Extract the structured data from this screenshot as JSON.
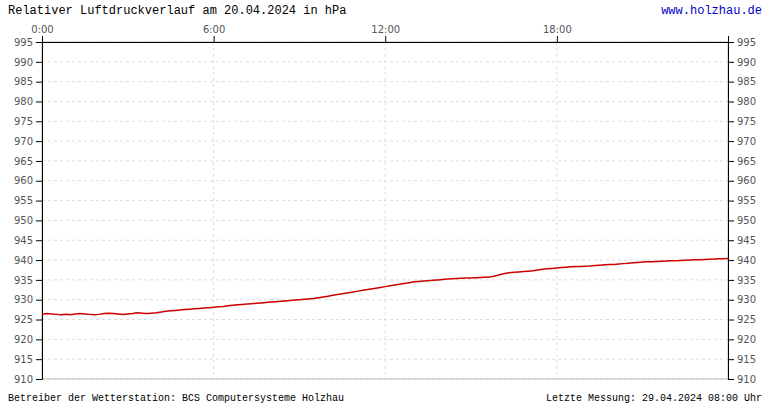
{
  "chart_data": {
    "type": "line",
    "title": "Relativer Luftdruckverlauf am 20.04.2024 in hPa",
    "annotations": [
      "www.holzhau.de",
      "Betreiber der Wetterstation: BCS Computersysteme Holzhau",
      "Letzte Messung: 29.04.2024 08:00 Uhr"
    ],
    "x": [
      0,
      10,
      20,
      30,
      40,
      50,
      60,
      70,
      80,
      90,
      100,
      110,
      120,
      130,
      140,
      150,
      160,
      170,
      180,
      190,
      200,
      210,
      220,
      230,
      240,
      250,
      260,
      270,
      280,
      290,
      300,
      310,
      320,
      330,
      340,
      350,
      360,
      370,
      380,
      390,
      400,
      410,
      420,
      430,
      440,
      450,
      460,
      470,
      480,
      490,
      500,
      510,
      520,
      530,
      540,
      550,
      560,
      570,
      580,
      590,
      600,
      610,
      620,
      630,
      640,
      650,
      660,
      670,
      680,
      690,
      700,
      710,
      720,
      730,
      740,
      750,
      760,
      770,
      780,
      790,
      800,
      810,
      820,
      830,
      840,
      850,
      860,
      870,
      880,
      890,
      900,
      910,
      920,
      930,
      940,
      950,
      960,
      970,
      980,
      990,
      1000,
      1010,
      1020,
      1030,
      1040,
      1050,
      1060,
      1070,
      1080,
      1090,
      1100,
      1110,
      1120,
      1130,
      1140,
      1150,
      1160,
      1170,
      1180,
      1190,
      1200,
      1210,
      1220,
      1230,
      1240,
      1250,
      1260,
      1270,
      1280,
      1290,
      1300,
      1310,
      1320,
      1330,
      1340,
      1350,
      1360,
      1370,
      1380,
      1390,
      1400,
      1410,
      1420,
      1430,
      1439
    ],
    "values": [
      926.3,
      926.5,
      926.4,
      926.3,
      926.2,
      926.3,
      926.2,
      926.4,
      926.5,
      926.4,
      926.3,
      926.2,
      926.3,
      926.5,
      926.6,
      926.5,
      926.4,
      926.3,
      926.4,
      926.5,
      926.7,
      926.6,
      926.5,
      926.6,
      926.7,
      926.9,
      927.1,
      927.2,
      927.3,
      927.4,
      927.5,
      927.6,
      927.7,
      927.8,
      927.9,
      928.0,
      928.1,
      928.2,
      928.3,
      928.5,
      928.6,
      928.7,
      928.8,
      928.9,
      929.0,
      929.1,
      929.2,
      929.3,
      929.4,
      929.5,
      929.6,
      929.7,
      929.8,
      929.9,
      930.0,
      930.1,
      930.2,
      930.3,
      930.5,
      930.7,
      930.9,
      931.1,
      931.3,
      931.5,
      931.7,
      931.9,
      932.1,
      932.3,
      932.5,
      932.7,
      932.9,
      933.1,
      933.3,
      933.5,
      933.7,
      933.9,
      934.1,
      934.3,
      934.5,
      934.6,
      934.7,
      934.8,
      934.9,
      935.0,
      935.1,
      935.2,
      935.3,
      935.35,
      935.4,
      935.45,
      935.5,
      935.55,
      935.6,
      935.65,
      935.7,
      936.0,
      936.3,
      936.6,
      936.8,
      936.9,
      937.0,
      937.1,
      937.2,
      937.3,
      937.5,
      937.7,
      937.8,
      937.9,
      938.0,
      938.1,
      938.2,
      938.3,
      938.35,
      938.4,
      938.45,
      938.5,
      938.6,
      938.7,
      938.8,
      938.85,
      938.9,
      939.0,
      939.1,
      939.2,
      939.3,
      939.4,
      939.5,
      939.55,
      939.6,
      939.65,
      939.7,
      939.75,
      939.8,
      939.85,
      939.9,
      939.95,
      940.0,
      940.05,
      940.1,
      940.15,
      940.2,
      940.25,
      940.3,
      940.35,
      940.4
    ],
    "color": "#cc0000",
    "xlim": [
      0,
      1439
    ],
    "xticks": [
      {
        "value": 0,
        "label": "0:00"
      },
      {
        "value": 360,
        "label": "6:00"
      },
      {
        "value": 720,
        "label": "12:00"
      },
      {
        "value": 1080,
        "label": "18:00"
      }
    ],
    "ylim": [
      910,
      995
    ],
    "yticks": [
      910,
      915,
      920,
      925,
      930,
      935,
      940,
      945,
      950,
      955,
      960,
      965,
      970,
      975,
      980,
      985,
      990,
      995
    ],
    "y2lim": [
      910,
      995
    ],
    "y2ticks": [
      910,
      915,
      920,
      925,
      930,
      935,
      940,
      945,
      950,
      955,
      960,
      965,
      970,
      975,
      980,
      985,
      990,
      995
    ],
    "grid": true
  }
}
